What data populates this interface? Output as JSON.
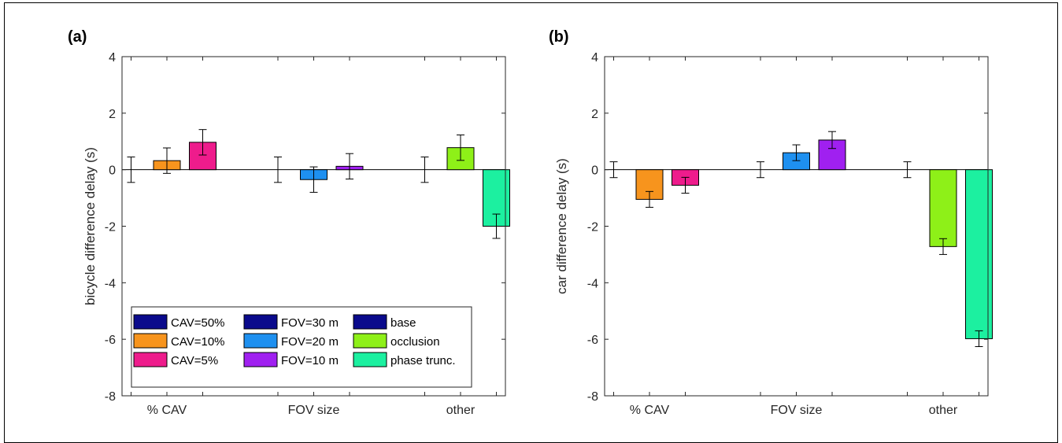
{
  "chart_data": [
    {
      "type": "bar",
      "panel_label": "(a)",
      "ylabel": "bicycle difference delay (s)",
      "ylim": [
        -8,
        4
      ],
      "yticks": [
        4,
        2,
        0,
        -2,
        -4,
        -6,
        -8
      ],
      "groups": [
        "% CAV",
        "FOV size",
        "other"
      ],
      "legend_placement": "bottom-left",
      "series": [
        {
          "group": "% CAV",
          "name": "CAV=50%",
          "value": 0.0,
          "error": 0.45,
          "color": "#0a0a8c"
        },
        {
          "group": "% CAV",
          "name": "CAV=10%",
          "value": 0.32,
          "error": 0.45,
          "color": "#f7941d"
        },
        {
          "group": "% CAV",
          "name": "CAV=5%",
          "value": 0.97,
          "error": 0.45,
          "color": "#ee1c8c"
        },
        {
          "group": "FOV size",
          "name": "FOV=30 m",
          "value": 0.0,
          "error": 0.45,
          "color": "#0a0a8c"
        },
        {
          "group": "FOV size",
          "name": "FOV=20 m",
          "value": -0.35,
          "error": 0.45,
          "color": "#1e90f0"
        },
        {
          "group": "FOV size",
          "name": "FOV=10 m",
          "value": 0.12,
          "error": 0.45,
          "color": "#a020f0"
        },
        {
          "group": "other",
          "name": "base",
          "value": 0.0,
          "error": 0.45,
          "color": "#0a0a8c"
        },
        {
          "group": "other",
          "name": "occlusion",
          "value": 0.78,
          "error": 0.45,
          "color": "#8ef018"
        },
        {
          "group": "other",
          "name": "phase trunc.",
          "value": -2.0,
          "error": 0.43,
          "color": "#1cf0a0"
        }
      ],
      "legend": [
        {
          "label": "CAV=50%",
          "color": "#0a0a8c"
        },
        {
          "label": "CAV=10%",
          "color": "#f7941d"
        },
        {
          "label": "CAV=5%",
          "color": "#ee1c8c"
        },
        {
          "label": "FOV=30 m",
          "color": "#0a0a8c"
        },
        {
          "label": "FOV=20 m",
          "color": "#1e90f0"
        },
        {
          "label": "FOV=10 m",
          "color": "#a020f0"
        },
        {
          "label": "base",
          "color": "#0a0a8c"
        },
        {
          "label": "occlusion",
          "color": "#8ef018"
        },
        {
          "label": "phase trunc.",
          "color": "#1cf0a0"
        }
      ]
    },
    {
      "type": "bar",
      "panel_label": "(b)",
      "ylabel": "car difference delay (s)",
      "ylim": [
        -8,
        4
      ],
      "yticks": [
        4,
        2,
        0,
        -2,
        -4,
        -6,
        -8
      ],
      "groups": [
        "% CAV",
        "FOV size",
        "other"
      ],
      "series": [
        {
          "group": "% CAV",
          "name": "CAV=50%",
          "value": 0.0,
          "error": 0.28,
          "color": "#0a0a8c"
        },
        {
          "group": "% CAV",
          "name": "CAV=10%",
          "value": -1.05,
          "error": 0.28,
          "color": "#f7941d"
        },
        {
          "group": "% CAV",
          "name": "CAV=5%",
          "value": -0.55,
          "error": 0.28,
          "color": "#ee1c8c"
        },
        {
          "group": "FOV size",
          "name": "FOV=30 m",
          "value": 0.0,
          "error": 0.28,
          "color": "#0a0a8c"
        },
        {
          "group": "FOV size",
          "name": "FOV=20 m",
          "value": 0.6,
          "error": 0.28,
          "color": "#1e90f0"
        },
        {
          "group": "FOV size",
          "name": "FOV=10 m",
          "value": 1.05,
          "error": 0.3,
          "color": "#a020f0"
        },
        {
          "group": "other",
          "name": "base",
          "value": 0.0,
          "error": 0.28,
          "color": "#0a0a8c"
        },
        {
          "group": "other",
          "name": "occlusion",
          "value": -2.72,
          "error": 0.28,
          "color": "#8ef018"
        },
        {
          "group": "other",
          "name": "phase trunc.",
          "value": -5.98,
          "error": 0.28,
          "color": "#1cf0a0"
        }
      ]
    }
  ]
}
